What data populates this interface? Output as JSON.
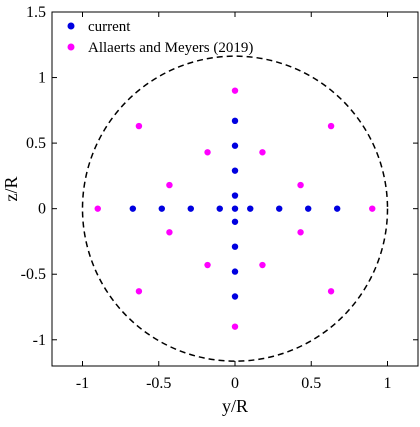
{
  "chart_data": {
    "type": "scatter",
    "title": "",
    "xlabel": "y/R",
    "ylabel": "z/R",
    "xlim": [
      -1.2,
      1.2
    ],
    "ylim": [
      -1.2,
      1.5
    ],
    "xticks": [
      -1,
      -0.5,
      0,
      0.5,
      1
    ],
    "xtick_labels": [
      "-1",
      "-0.5",
      "0",
      "0.5",
      "1"
    ],
    "yticks": [
      -1,
      -0.5,
      0,
      0.5,
      1,
      1.5
    ],
    "ytick_labels": [
      "-1",
      "-0.5",
      "0",
      "0.5",
      "1",
      "1.5"
    ],
    "grid": false,
    "legend_position": "top-left",
    "circle": {
      "center": [
        0,
        0
      ],
      "radius": 1,
      "style": "dashed",
      "color": "#000000"
    },
    "series": [
      {
        "name": "current",
        "color": "#0000e0",
        "points": [
          [
            -0.67,
            0
          ],
          [
            -0.48,
            0
          ],
          [
            -0.29,
            0
          ],
          [
            -0.1,
            0
          ],
          [
            0,
            0
          ],
          [
            0.1,
            0
          ],
          [
            0.29,
            0
          ],
          [
            0.48,
            0
          ],
          [
            0.67,
            0
          ],
          [
            0,
            -0.67
          ],
          [
            0,
            -0.48
          ],
          [
            0,
            -0.29
          ],
          [
            0,
            -0.1
          ],
          [
            0,
            0.1
          ],
          [
            0,
            0.29
          ],
          [
            0,
            0.48
          ],
          [
            0,
            0.67
          ]
        ]
      },
      {
        "name": "Allaerts and Meyers (2019)",
        "color": "#ff00ff",
        "points": [
          [
            -0.9,
            0
          ],
          [
            0.9,
            0
          ],
          [
            0,
            0.9
          ],
          [
            0,
            -0.9
          ],
          [
            -0.63,
            0.63
          ],
          [
            0.63,
            0.63
          ],
          [
            -0.63,
            -0.63
          ],
          [
            0.63,
            -0.63
          ],
          [
            -0.18,
            0.43
          ],
          [
            0.18,
            0.43
          ],
          [
            -0.18,
            -0.43
          ],
          [
            0.18,
            -0.43
          ],
          [
            -0.43,
            0.18
          ],
          [
            0.43,
            0.18
          ],
          [
            -0.43,
            -0.18
          ],
          [
            0.43,
            -0.18
          ]
        ]
      }
    ]
  }
}
